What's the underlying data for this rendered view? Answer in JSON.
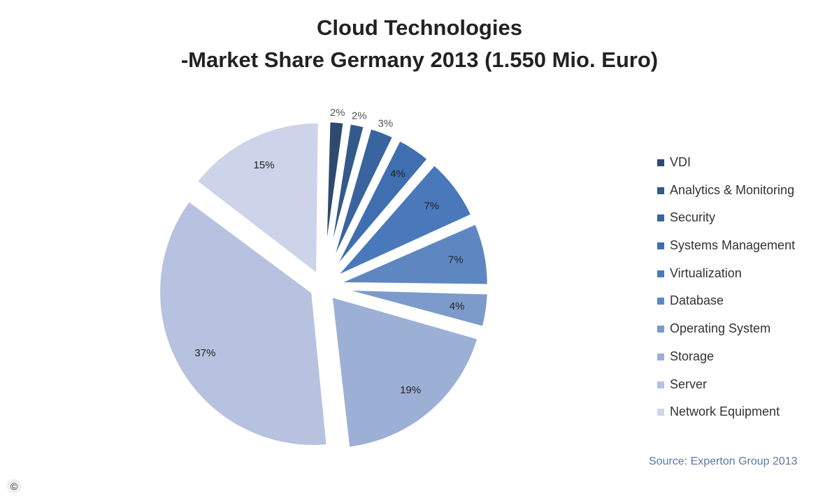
{
  "chart_data": {
    "type": "pie",
    "title": "Cloud Technologies",
    "subtitle": "-Market Share Germany 2013 (1.550 Mio. Euro)",
    "categories": [
      "VDI",
      "Analytics & Monitoring",
      "Security",
      "Systems Management",
      "Virtualization",
      "Database",
      "Operating System",
      "Storage",
      "Server",
      "Network Equipment"
    ],
    "values": [
      2,
      2,
      3,
      4,
      7,
      7,
      4,
      19,
      37,
      15
    ],
    "labels": [
      "2%",
      "2%",
      "3%",
      "4%",
      "7%",
      "7%",
      "4%",
      "19%",
      "37%",
      "15%"
    ],
    "colors": [
      "#2e4a6e",
      "#34598a",
      "#3a64a0",
      "#3f6fb0",
      "#4a79bb",
      "#5e87c2",
      "#7c9bcb",
      "#9cb0d6",
      "#b7c2e0",
      "#cdd3e8"
    ],
    "exploded": true,
    "legend_position": "right",
    "source": "Source: Experton Group 2013"
  },
  "copyright": "©"
}
